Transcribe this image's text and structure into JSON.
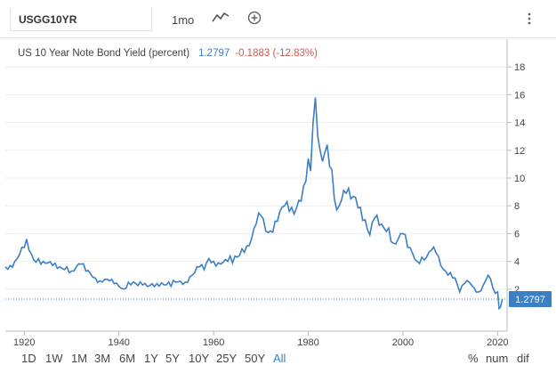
{
  "toolbar": {
    "symbol": "USGG10YR",
    "interval": "1mo",
    "chart_type_icon": "line-chart-icon",
    "add_icon": "plus-circle-icon",
    "more_icon": "vertical-dots-icon"
  },
  "legend": {
    "title": "US 10 Year Note Bond Yield (percent)",
    "value": "1.2797",
    "change": "-0.1883 (-12.83%)"
  },
  "range_buttons": [
    "1D",
    "1W",
    "1M",
    "3M",
    "6M",
    "1Y",
    "5Y",
    "10Y",
    "25Y",
    "50Y",
    "All"
  ],
  "active_range": "All",
  "mode_buttons": [
    "%",
    "num",
    "dif"
  ],
  "colors": {
    "line": "#3b7fc4",
    "change_negative": "#d9534f",
    "badge": "#3b7fc4"
  },
  "chart_data": {
    "type": "line",
    "title": "US 10 Year Note Bond Yield (percent)",
    "xlabel": "",
    "ylabel": "",
    "xlim": [
      1916,
      2022
    ],
    "ylim": [
      0,
      20
    ],
    "x_ticks": [
      "1920",
      "1940",
      "1960",
      "1980",
      "2000",
      "2020"
    ],
    "y_ticks": [
      "2",
      "4",
      "6",
      "8",
      "10",
      "12",
      "14",
      "16",
      "18"
    ],
    "last_value_label": "1.2797",
    "grid": "horizontal",
    "series": [
      {
        "x": [
          1916,
          1917,
          1918,
          1919,
          1920,
          1920.5,
          1921,
          1922,
          1923,
          1924,
          1925,
          1926,
          1927,
          1928,
          1929,
          1930,
          1931,
          1932,
          1933,
          1934,
          1935,
          1936,
          1937,
          1938,
          1939,
          1940,
          1941,
          1942,
          1945,
          1946,
          1948,
          1950,
          1952,
          1954,
          1955,
          1957,
          1958,
          1959,
          1960,
          1961,
          1963,
          1965,
          1966,
          1967,
          1968,
          1969,
          1970,
          1971,
          1972,
          1973,
          1974,
          1975,
          1976,
          1977,
          1978,
          1979,
          1980,
          1980.5,
          1981,
          1981.5,
          1982,
          1982.5,
          1983,
          1984,
          1985,
          1986,
          1987,
          1988,
          1989,
          1990,
          1991,
          1992,
          1993,
          1994,
          1995,
          1996,
          1997,
          1998,
          1999,
          2000,
          2001,
          2002,
          2003,
          2004,
          2005,
          2006,
          2007,
          2008,
          2009,
          2010,
          2011,
          2012,
          2013,
          2014,
          2015,
          2016,
          2017,
          2018,
          2019,
          2019.5,
          2020,
          2020.3,
          2020.6,
          2021
        ],
        "y": [
          3.6,
          3.7,
          4.0,
          4.5,
          5.0,
          5.6,
          4.8,
          4.1,
          4.2,
          4.0,
          3.9,
          3.7,
          3.5,
          3.5,
          3.6,
          3.3,
          3.6,
          3.8,
          3.3,
          3.1,
          2.8,
          2.6,
          2.7,
          2.6,
          2.4,
          2.2,
          2.0,
          2.5,
          2.3,
          2.2,
          2.4,
          2.3,
          2.5,
          2.5,
          2.9,
          3.6,
          3.4,
          4.2,
          4.0,
          3.9,
          4.0,
          4.3,
          4.9,
          5.1,
          5.6,
          6.7,
          7.3,
          6.2,
          6.2,
          6.9,
          7.6,
          8.0,
          7.6,
          7.4,
          8.4,
          9.4,
          11.4,
          10.5,
          13.9,
          15.8,
          13.0,
          12.0,
          11.2,
          12.4,
          10.6,
          7.7,
          8.4,
          8.9,
          8.5,
          8.6,
          7.9,
          7.0,
          5.9,
          7.1,
          6.6,
          6.4,
          6.4,
          5.3,
          5.6,
          6.0,
          5.0,
          4.6,
          4.0,
          4.3,
          4.3,
          4.8,
          4.6,
          3.7,
          3.3,
          3.2,
          2.8,
          1.8,
          2.4,
          2.5,
          2.1,
          1.8,
          2.3,
          3.0,
          2.1,
          1.7,
          1.8,
          0.6,
          0.7,
          1.28
        ]
      }
    ]
  }
}
